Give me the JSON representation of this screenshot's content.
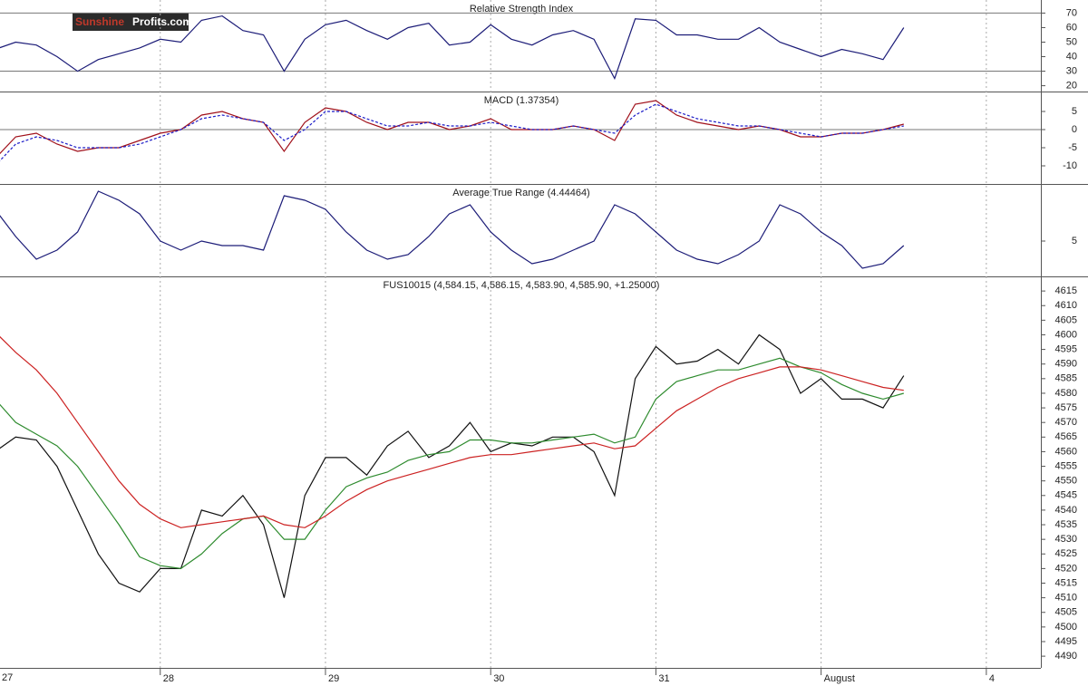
{
  "logo": {
    "part1": "Sunshine",
    "part2": "Profits.com"
  },
  "chart_data": [
    {
      "type": "line",
      "title": "Relative Strength Index",
      "x": [
        0,
        0.125,
        0.25,
        0.375,
        0.5,
        0.625,
        0.75,
        0.875,
        1,
        1.125,
        1.25,
        1.375,
        1.5,
        1.625,
        1.75,
        1.875,
        2,
        2.125,
        2.25,
        2.375,
        2.5,
        2.625,
        2.75,
        2.875,
        3,
        3.125,
        3.25,
        3.375,
        3.5,
        3.625,
        3.75,
        3.875,
        4,
        4.125,
        4.25,
        4.375,
        4.5,
        4.625,
        4.75,
        4.875,
        5,
        5.125,
        5.25,
        5.375,
        5.5
      ],
      "series": [
        {
          "color": "#1c1c78",
          "values": [
            45,
            50,
            48,
            40,
            30,
            38,
            42,
            46,
            52,
            50,
            65,
            68,
            58,
            55,
            30,
            52,
            62,
            65,
            58,
            52,
            60,
            63,
            48,
            50,
            62,
            52,
            48,
            55,
            58,
            52,
            25,
            66,
            65,
            55,
            55,
            52,
            52,
            60,
            50,
            45,
            40,
            45,
            42,
            38,
            60
          ]
        }
      ],
      "ylim": [
        16,
        79
      ],
      "yticks": [
        20,
        30,
        40,
        50,
        60,
        70
      ],
      "reference_lines": [
        30,
        70
      ]
    },
    {
      "type": "line",
      "title": "MACD (1.37354)",
      "x": [
        0,
        0.125,
        0.25,
        0.375,
        0.5,
        0.625,
        0.75,
        0.875,
        1,
        1.125,
        1.25,
        1.375,
        1.5,
        1.625,
        1.75,
        1.875,
        2,
        2.125,
        2.25,
        2.375,
        2.5,
        2.625,
        2.75,
        2.875,
        3,
        3.125,
        3.25,
        3.375,
        3.5,
        3.625,
        3.75,
        3.875,
        4,
        4.125,
        4.25,
        4.375,
        4.5,
        4.625,
        4.75,
        4.875,
        5,
        5.125,
        5.25,
        5.375,
        5.5
      ],
      "series": [
        {
          "color": "#a0101a",
          "values": [
            -8,
            -2,
            -1,
            -4,
            -6,
            -5,
            -5,
            -3,
            -1,
            0,
            4,
            5,
            3,
            2,
            -6,
            2,
            6,
            5,
            2,
            0,
            2,
            2,
            0,
            1,
            3,
            0,
            0,
            0,
            1,
            0,
            -3,
            7,
            8,
            4,
            2,
            1,
            0,
            1,
            0,
            -2,
            -2,
            -1,
            -1,
            0,
            1.5
          ]
        },
        {
          "color": "#1c1cc8",
          "dash": true,
          "values": [
            -10,
            -4,
            -2,
            -3,
            -5,
            -5,
            -5,
            -4,
            -2,
            0,
            3,
            4,
            3,
            2,
            -3,
            0,
            5,
            5,
            3,
            1,
            1,
            2,
            1,
            1,
            2,
            1,
            0,
            0,
            1,
            0,
            -1,
            4,
            7,
            5,
            3,
            2,
            1,
            1,
            0,
            -1,
            -2,
            -1,
            -1,
            0,
            1
          ]
        }
      ],
      "ylim": [
        -15,
        10.5
      ],
      "yticks": [
        -10,
        -5,
        0,
        5
      ],
      "reference_lines": [
        0
      ]
    },
    {
      "type": "line",
      "title": "Average True Range (4.44464)",
      "x": [
        0,
        0.125,
        0.25,
        0.375,
        0.5,
        0.625,
        0.75,
        0.875,
        1,
        1.125,
        1.25,
        1.375,
        1.5,
        1.625,
        1.75,
        1.875,
        2,
        2.125,
        2.25,
        2.375,
        2.5,
        2.625,
        2.75,
        2.875,
        3,
        3.125,
        3.25,
        3.375,
        3.5,
        3.625,
        3.75,
        3.875,
        4,
        4.125,
        4.25,
        4.375,
        4.5,
        4.625,
        4.75,
        4.875,
        5,
        5.125,
        5.25,
        5.375,
        5.5
      ],
      "series": [
        {
          "color": "#1c1c78",
          "values": [
            8.5,
            5.5,
            3,
            4,
            6,
            10.5,
            9.5,
            8,
            5,
            4,
            5,
            4.5,
            4.5,
            4,
            10,
            9.5,
            8.5,
            6,
            4,
            3,
            3.5,
            5.5,
            8,
            9,
            6,
            4,
            2.5,
            3,
            4,
            5,
            9,
            8,
            6,
            4,
            3,
            2.5,
            3.5,
            5,
            9,
            8,
            6,
            4.5,
            2,
            2.5,
            4.5
          ]
        }
      ],
      "ylim": [
        1.1,
        11.3
      ],
      "yticks": [
        5
      ]
    },
    {
      "type": "line",
      "title": "FUS10015 (4,584.15, 4,586.15, 4,583.90, 4,585.90, +1.25000)",
      "x": [
        0,
        0.125,
        0.25,
        0.375,
        0.5,
        0.625,
        0.75,
        0.875,
        1,
        1.125,
        1.25,
        1.375,
        1.5,
        1.625,
        1.75,
        1.875,
        2,
        2.125,
        2.25,
        2.375,
        2.5,
        2.625,
        2.75,
        2.875,
        3,
        3.125,
        3.25,
        3.375,
        3.5,
        3.625,
        3.75,
        3.875,
        4,
        4.125,
        4.25,
        4.375,
        4.5,
        4.625,
        4.75,
        4.875,
        5,
        5.125,
        5.25,
        5.375,
        5.5
      ],
      "series": [
        {
          "color": "#111111",
          "values": [
            4560,
            4565,
            4564,
            4555,
            4540,
            4525,
            4515,
            4512,
            4520,
            4520,
            4540,
            4538,
            4545,
            4535,
            4510,
            4545,
            4558,
            4558,
            4552,
            4562,
            4567,
            4558,
            4562,
            4570,
            4560,
            4563,
            4562,
            4565,
            4565,
            4560,
            4545,
            4585,
            4596,
            4590,
            4591,
            4595,
            4590,
            4600,
            4595,
            4580,
            4585,
            4578,
            4578,
            4575,
            4586
          ]
        },
        {
          "color": "#2e8b2e",
          "values": [
            4578,
            4570,
            4566,
            4562,
            4555,
            4545,
            4535,
            4524,
            4521,
            4520,
            4525,
            4532,
            4537,
            4538,
            4530,
            4530,
            4540,
            4548,
            4551,
            4553,
            4557,
            4559,
            4560,
            4564,
            4564,
            4563,
            4563,
            4564,
            4565,
            4566,
            4563,
            4565,
            4578,
            4584,
            4586,
            4588,
            4588,
            4590,
            4592,
            4589,
            4587,
            4583,
            4580,
            4578,
            4580
          ]
        },
        {
          "color": "#cc2222",
          "values": [
            4601,
            4594,
            4588,
            4580,
            4570,
            4560,
            4550,
            4542,
            4537,
            4534,
            4535,
            4536,
            4537,
            4538,
            4535,
            4534,
            4538,
            4543,
            4547,
            4550,
            4552,
            4554,
            4556,
            4558,
            4559,
            4559,
            4560,
            4561,
            4562,
            4563,
            4561,
            4562,
            4568,
            4574,
            4578,
            4582,
            4585,
            4587,
            4589,
            4589,
            4588,
            4586,
            4584,
            4582,
            4581
          ]
        }
      ],
      "ylim": [
        4486,
        4620
      ],
      "yticks": [
        4490,
        4495,
        4500,
        4505,
        4510,
        4515,
        4520,
        4525,
        4530,
        4535,
        4540,
        4545,
        4550,
        4555,
        4560,
        4565,
        4570,
        4575,
        4580,
        4585,
        4590,
        4595,
        4600,
        4605,
        4610,
        4615
      ],
      "xlim": [
        0.03,
        6.33
      ],
      "xticks": [
        {
          "value": 0,
          "label": "27"
        },
        {
          "value": 1,
          "label": "28"
        },
        {
          "value": 2,
          "label": "29"
        },
        {
          "value": 3,
          "label": "30"
        },
        {
          "value": 4,
          "label": "31"
        },
        {
          "value": 5,
          "label": "August"
        },
        {
          "value": 6,
          "label": "4"
        }
      ]
    }
  ]
}
